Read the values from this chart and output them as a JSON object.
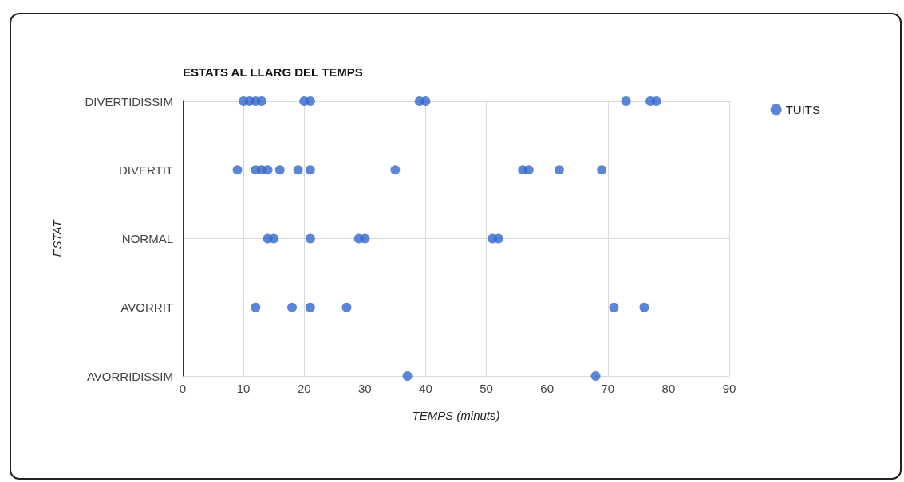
{
  "chart_data": {
    "type": "scatter",
    "title": "ESTATS AL LLARG DEL TEMPS",
    "xlabel": "TEMPS (minuts)",
    "ylabel": "ESTAT",
    "orientation": "horizontal",
    "categories": [
      "DIVERTIDISSIM",
      "DIVERTIT",
      "NORMAL",
      "AVORRIT",
      "AVORRIDISSIM"
    ],
    "series": [
      {
        "name": "TUITS",
        "color": "#3366cc",
        "x": [
          "DIVERTIDISSIM",
          "DIVERTIDISSIM",
          "DIVERTIDISSIM",
          "DIVERTIDISSIM",
          "DIVERTIDISSIM",
          "DIVERTIDISSIM",
          "DIVERTIDISSIM",
          "DIVERTIDISSIM",
          "DIVERTIDISSIM",
          "DIVERTIDISSIM",
          "DIVERTIDISSIM",
          "DIVERTIT",
          "DIVERTIT",
          "DIVERTIT",
          "DIVERTIT",
          "DIVERTIT",
          "DIVERTIT",
          "DIVERTIT",
          "DIVERTIT",
          "DIVERTIT",
          "DIVERTIT",
          "DIVERTIT",
          "DIVERTIT",
          "NORMAL",
          "NORMAL",
          "NORMAL",
          "NORMAL",
          "NORMAL",
          "NORMAL",
          "NORMAL",
          "AVORRIT",
          "AVORRIT",
          "AVORRIT",
          "AVORRIT",
          "AVORRIT",
          "AVORRIT",
          "AVORRIDISSIM",
          "AVORRIDISSIM"
        ],
        "values": [
          10,
          11,
          12,
          13,
          20,
          21,
          39,
          40,
          73,
          77,
          78,
          9,
          12,
          13,
          14,
          16,
          19,
          21,
          35,
          56,
          57,
          62,
          69,
          14,
          15,
          21,
          29,
          30,
          51,
          52,
          12,
          18,
          21,
          27,
          71,
          76,
          37,
          68
        ]
      }
    ],
    "xlim": [
      0,
      90
    ],
    "xticks": [
      0,
      10,
      20,
      30,
      40,
      50,
      60,
      70,
      80,
      90
    ],
    "grid": true,
    "legend": "top right",
    "marker": "circle"
  }
}
